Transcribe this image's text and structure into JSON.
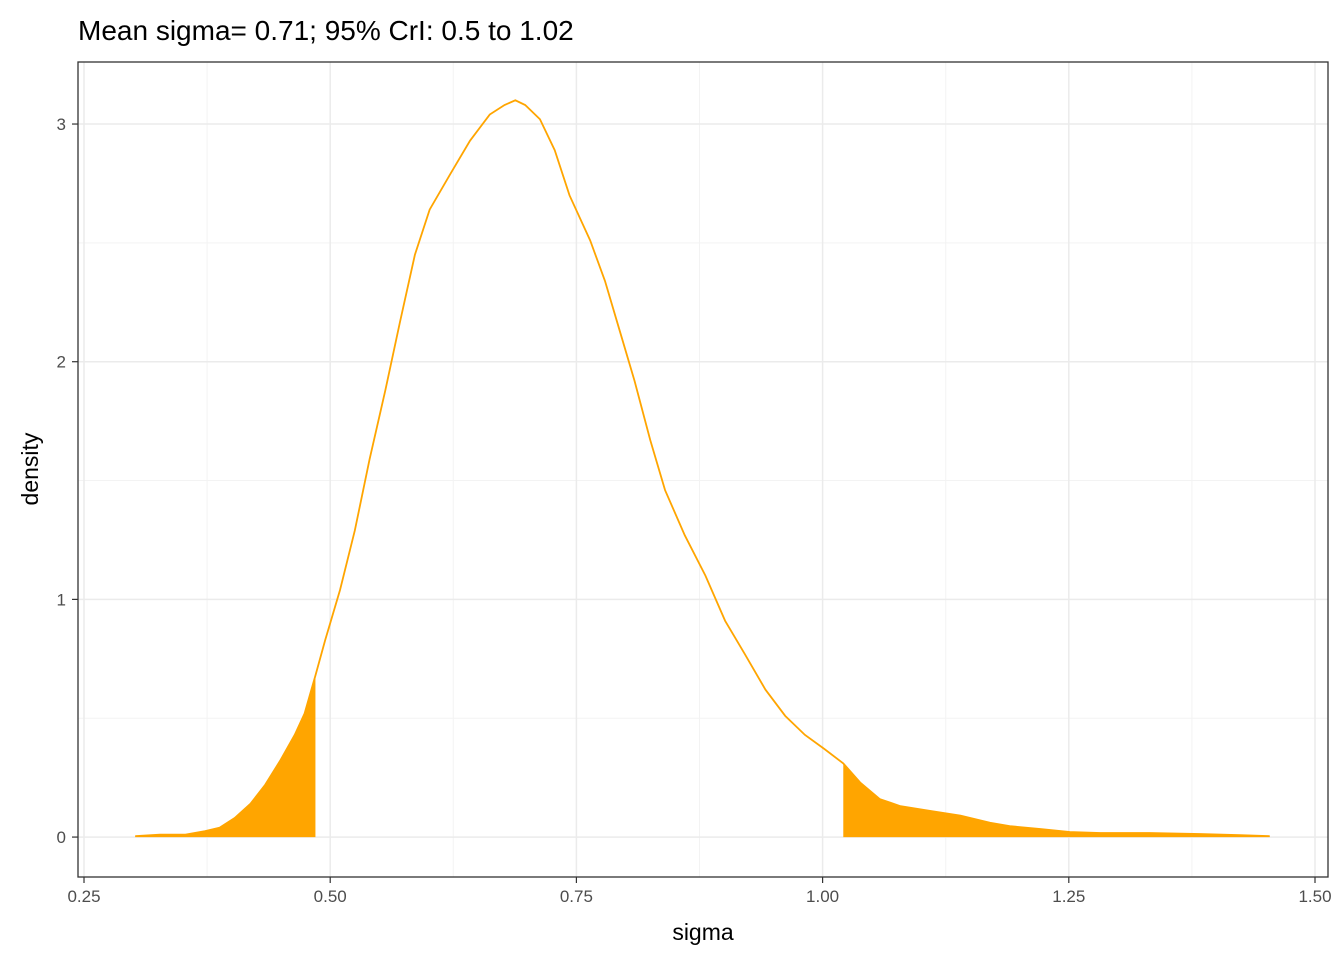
{
  "chart_data": {
    "type": "density",
    "title": "Mean sigma= 0.71; 95% CrI: 0.5 to 1.02",
    "x_label": "sigma",
    "y_label": "density",
    "color": "#FFA500",
    "x": [
      0.302,
      0.327,
      0.353,
      0.373,
      0.388,
      0.403,
      0.419,
      0.434,
      0.449,
      0.464,
      0.474,
      0.485,
      0.495,
      0.51,
      0.525,
      0.54,
      0.556,
      0.571,
      0.586,
      0.601,
      0.622,
      0.642,
      0.662,
      0.677,
      0.688,
      0.698,
      0.713,
      0.728,
      0.743,
      0.764,
      0.779,
      0.794,
      0.809,
      0.825,
      0.84,
      0.86,
      0.881,
      0.901,
      0.921,
      0.942,
      0.962,
      0.982,
      1.002,
      1.021,
      1.038,
      1.058,
      1.079,
      1.109,
      1.14,
      1.17,
      1.19,
      1.221,
      1.251,
      1.282,
      1.332,
      1.383,
      1.424,
      1.454
    ],
    "values": [
      0.004,
      0.01,
      0.01,
      0.025,
      0.04,
      0.08,
      0.14,
      0.22,
      0.32,
      0.43,
      0.52,
      0.68,
      0.83,
      1.04,
      1.29,
      1.59,
      1.88,
      2.17,
      2.45,
      2.64,
      2.79,
      2.93,
      3.04,
      3.08,
      3.1,
      3.08,
      3.02,
      2.89,
      2.7,
      2.51,
      2.34,
      2.13,
      1.92,
      1.67,
      1.46,
      1.27,
      1.1,
      0.91,
      0.77,
      0.62,
      0.51,
      0.43,
      0.37,
      0.31,
      0.23,
      0.16,
      0.13,
      0.11,
      0.09,
      0.06,
      0.046,
      0.034,
      0.021,
      0.017,
      0.017,
      0.013,
      0.008,
      0.004
    ],
    "shade_below": 0.485,
    "shade_above": 1.021,
    "xlim": [
      0.2439,
      1.5132
    ],
    "ylim": [
      -0.168,
      3.261
    ],
    "xticks": [
      {
        "value": 0.25,
        "label": "0.25"
      },
      {
        "value": 0.5,
        "label": "0.50"
      },
      {
        "value": 0.75,
        "label": "0.75"
      },
      {
        "value": 1,
        "label": "1.00"
      },
      {
        "value": 1.25,
        "label": "1.25"
      },
      {
        "value": 1.5,
        "label": "1.50"
      }
    ],
    "yticks": [
      0,
      1,
      2,
      3
    ],
    "x_minor_grid": [
      0.375,
      0.625,
      0.875,
      1.125,
      1.375
    ],
    "y_minor_grid": [
      0.5,
      1.5,
      2.5
    ],
    "grid": true
  }
}
